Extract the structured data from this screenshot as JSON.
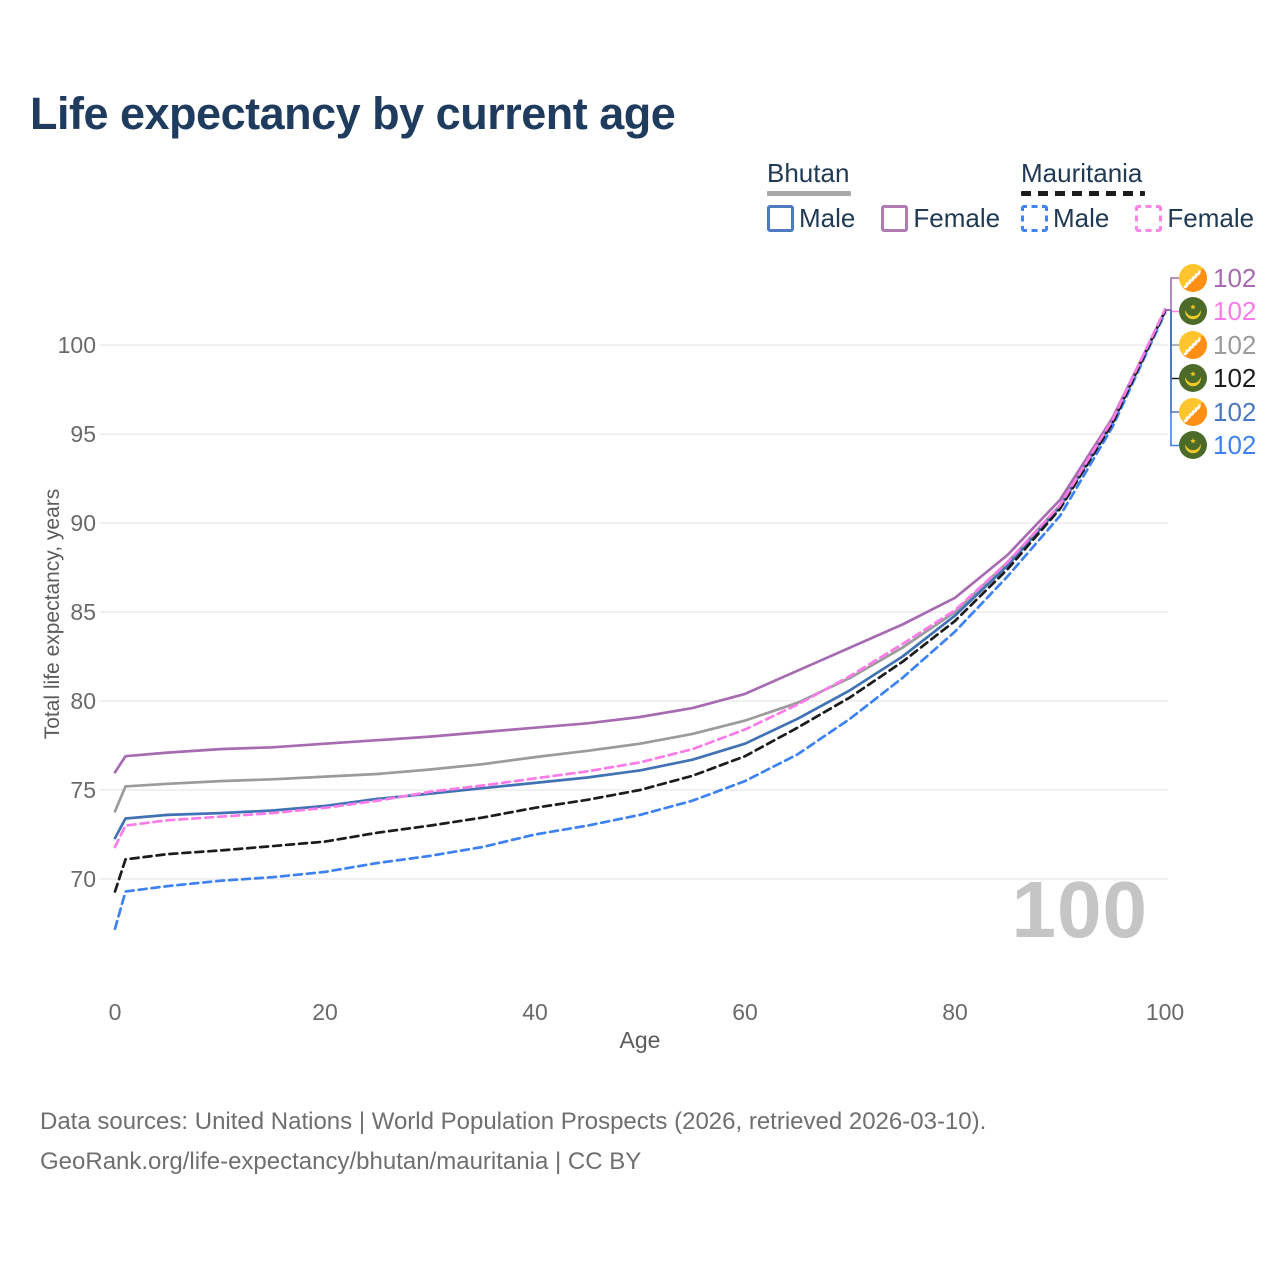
{
  "header": {
    "title": "Life expectancy by current age"
  },
  "legend": {
    "groups": [
      {
        "title": "Bhutan",
        "line_style": "solid",
        "underline_color": "#a8a8a8",
        "items": [
          {
            "label": "Male",
            "color": "#4e7ac0",
            "style": "solid"
          },
          {
            "label": "Female",
            "color": "#b07ab2",
            "style": "solid"
          }
        ]
      },
      {
        "title": "Mauritania",
        "line_style": "dashed",
        "underline_color": "#1c1c1c",
        "items": [
          {
            "label": "Male",
            "color": "#4285f4",
            "style": "dashed"
          },
          {
            "label": "Female",
            "color": "#fc85e6",
            "style": "dashed"
          }
        ]
      }
    ]
  },
  "chart_data": {
    "type": "line",
    "title": "Life expectancy by current age",
    "xlabel": "Age",
    "ylabel": "Total life expectancy, years",
    "x_ticks": [
      0,
      20,
      40,
      60,
      80,
      100
    ],
    "y_ticks": [
      70,
      75,
      80,
      85,
      90,
      95,
      100
    ],
    "xlim": [
      0,
      100
    ],
    "ylim": [
      66,
      103
    ],
    "grid": "horizontal",
    "legend_position": "top-right",
    "x": [
      0,
      1,
      5,
      10,
      15,
      20,
      25,
      30,
      35,
      40,
      45,
      50,
      55,
      60,
      65,
      70,
      75,
      80,
      85,
      90,
      95,
      100
    ],
    "series": [
      {
        "name": "Bhutan Female",
        "country": "bhutan",
        "color": "#a66bb0",
        "dash": false,
        "end_label": "102",
        "values": [
          76.0,
          76.9,
          77.1,
          77.3,
          77.4,
          77.6,
          77.8,
          78.0,
          78.25,
          78.5,
          78.75,
          79.1,
          79.6,
          80.4,
          81.7,
          83.0,
          84.3,
          85.8,
          88.2,
          91.3,
          95.9,
          101.9
        ]
      },
      {
        "name": "Bhutan",
        "country": "bhutan",
        "color": "#9b9b9b",
        "dash": false,
        "end_label": "102",
        "values": [
          73.8,
          75.2,
          75.35,
          75.5,
          75.6,
          75.75,
          75.9,
          76.15,
          76.45,
          76.85,
          77.2,
          77.6,
          78.15,
          78.9,
          79.9,
          81.3,
          83.0,
          85.0,
          87.8,
          91.0,
          95.8,
          101.9
        ]
      },
      {
        "name": "Bhutan Male",
        "country": "bhutan",
        "color": "#4173b4",
        "dash": false,
        "end_label": "102",
        "values": [
          72.3,
          73.4,
          73.6,
          73.7,
          73.85,
          74.1,
          74.5,
          74.8,
          75.1,
          75.4,
          75.7,
          76.1,
          76.7,
          77.6,
          79.0,
          80.6,
          82.5,
          84.8,
          87.6,
          90.9,
          95.7,
          101.9
        ]
      },
      {
        "name": "Mauritania Female",
        "country": "mauritania",
        "color": "#fb7ce8",
        "dash": true,
        "end_label": "102",
        "values": [
          71.8,
          73.0,
          73.3,
          73.5,
          73.7,
          74.0,
          74.4,
          74.9,
          75.25,
          75.65,
          76.05,
          76.55,
          77.3,
          78.4,
          79.8,
          81.4,
          83.2,
          85.1,
          87.8,
          91.0,
          95.8,
          102.0
        ]
      },
      {
        "name": "Mauritania",
        "country": "mauritania",
        "color": "#1c1c1c",
        "dash": true,
        "end_label": "102",
        "values": [
          69.3,
          71.1,
          71.4,
          71.6,
          71.85,
          72.1,
          72.6,
          73.0,
          73.45,
          74.0,
          74.45,
          75.0,
          75.8,
          76.9,
          78.5,
          80.2,
          82.2,
          84.5,
          87.4,
          90.8,
          95.6,
          101.9
        ]
      },
      {
        "name": "Mauritania Male",
        "country": "mauritania",
        "color": "#3e82f2",
        "dash": true,
        "end_label": "102",
        "values": [
          67.2,
          69.3,
          69.6,
          69.9,
          70.1,
          70.4,
          70.9,
          71.3,
          71.8,
          72.5,
          73.0,
          73.6,
          74.4,
          75.5,
          77.0,
          79.0,
          81.3,
          83.9,
          87.0,
          90.4,
          95.4,
          101.8
        ]
      }
    ],
    "end_labels": [
      {
        "flag": "bhutan",
        "series": "Bhutan Female",
        "value": "102",
        "color": "#a66bb0"
      },
      {
        "flag": "mauritania",
        "series": "Mauritania Female",
        "value": "102",
        "color": "#fb7ce8"
      },
      {
        "flag": "bhutan",
        "series": "Bhutan",
        "value": "102",
        "color": "#9b9b9b"
      },
      {
        "flag": "mauritania",
        "series": "Mauritania",
        "value": "102",
        "color": "#1c1c1c"
      },
      {
        "flag": "bhutan",
        "series": "Bhutan Male",
        "value": "102",
        "color": "#4b79c0"
      },
      {
        "flag": "mauritania",
        "series": "Mauritania Male",
        "value": "102",
        "color": "#3e82f2"
      }
    ],
    "watermark": "100"
  },
  "footer": {
    "line1": "Data sources: United Nations | World Population Prospects (2026, retrieved 2026-03-10).",
    "line2": "GeoRank.org/life-expectancy/bhutan/mauritania | CC BY"
  }
}
